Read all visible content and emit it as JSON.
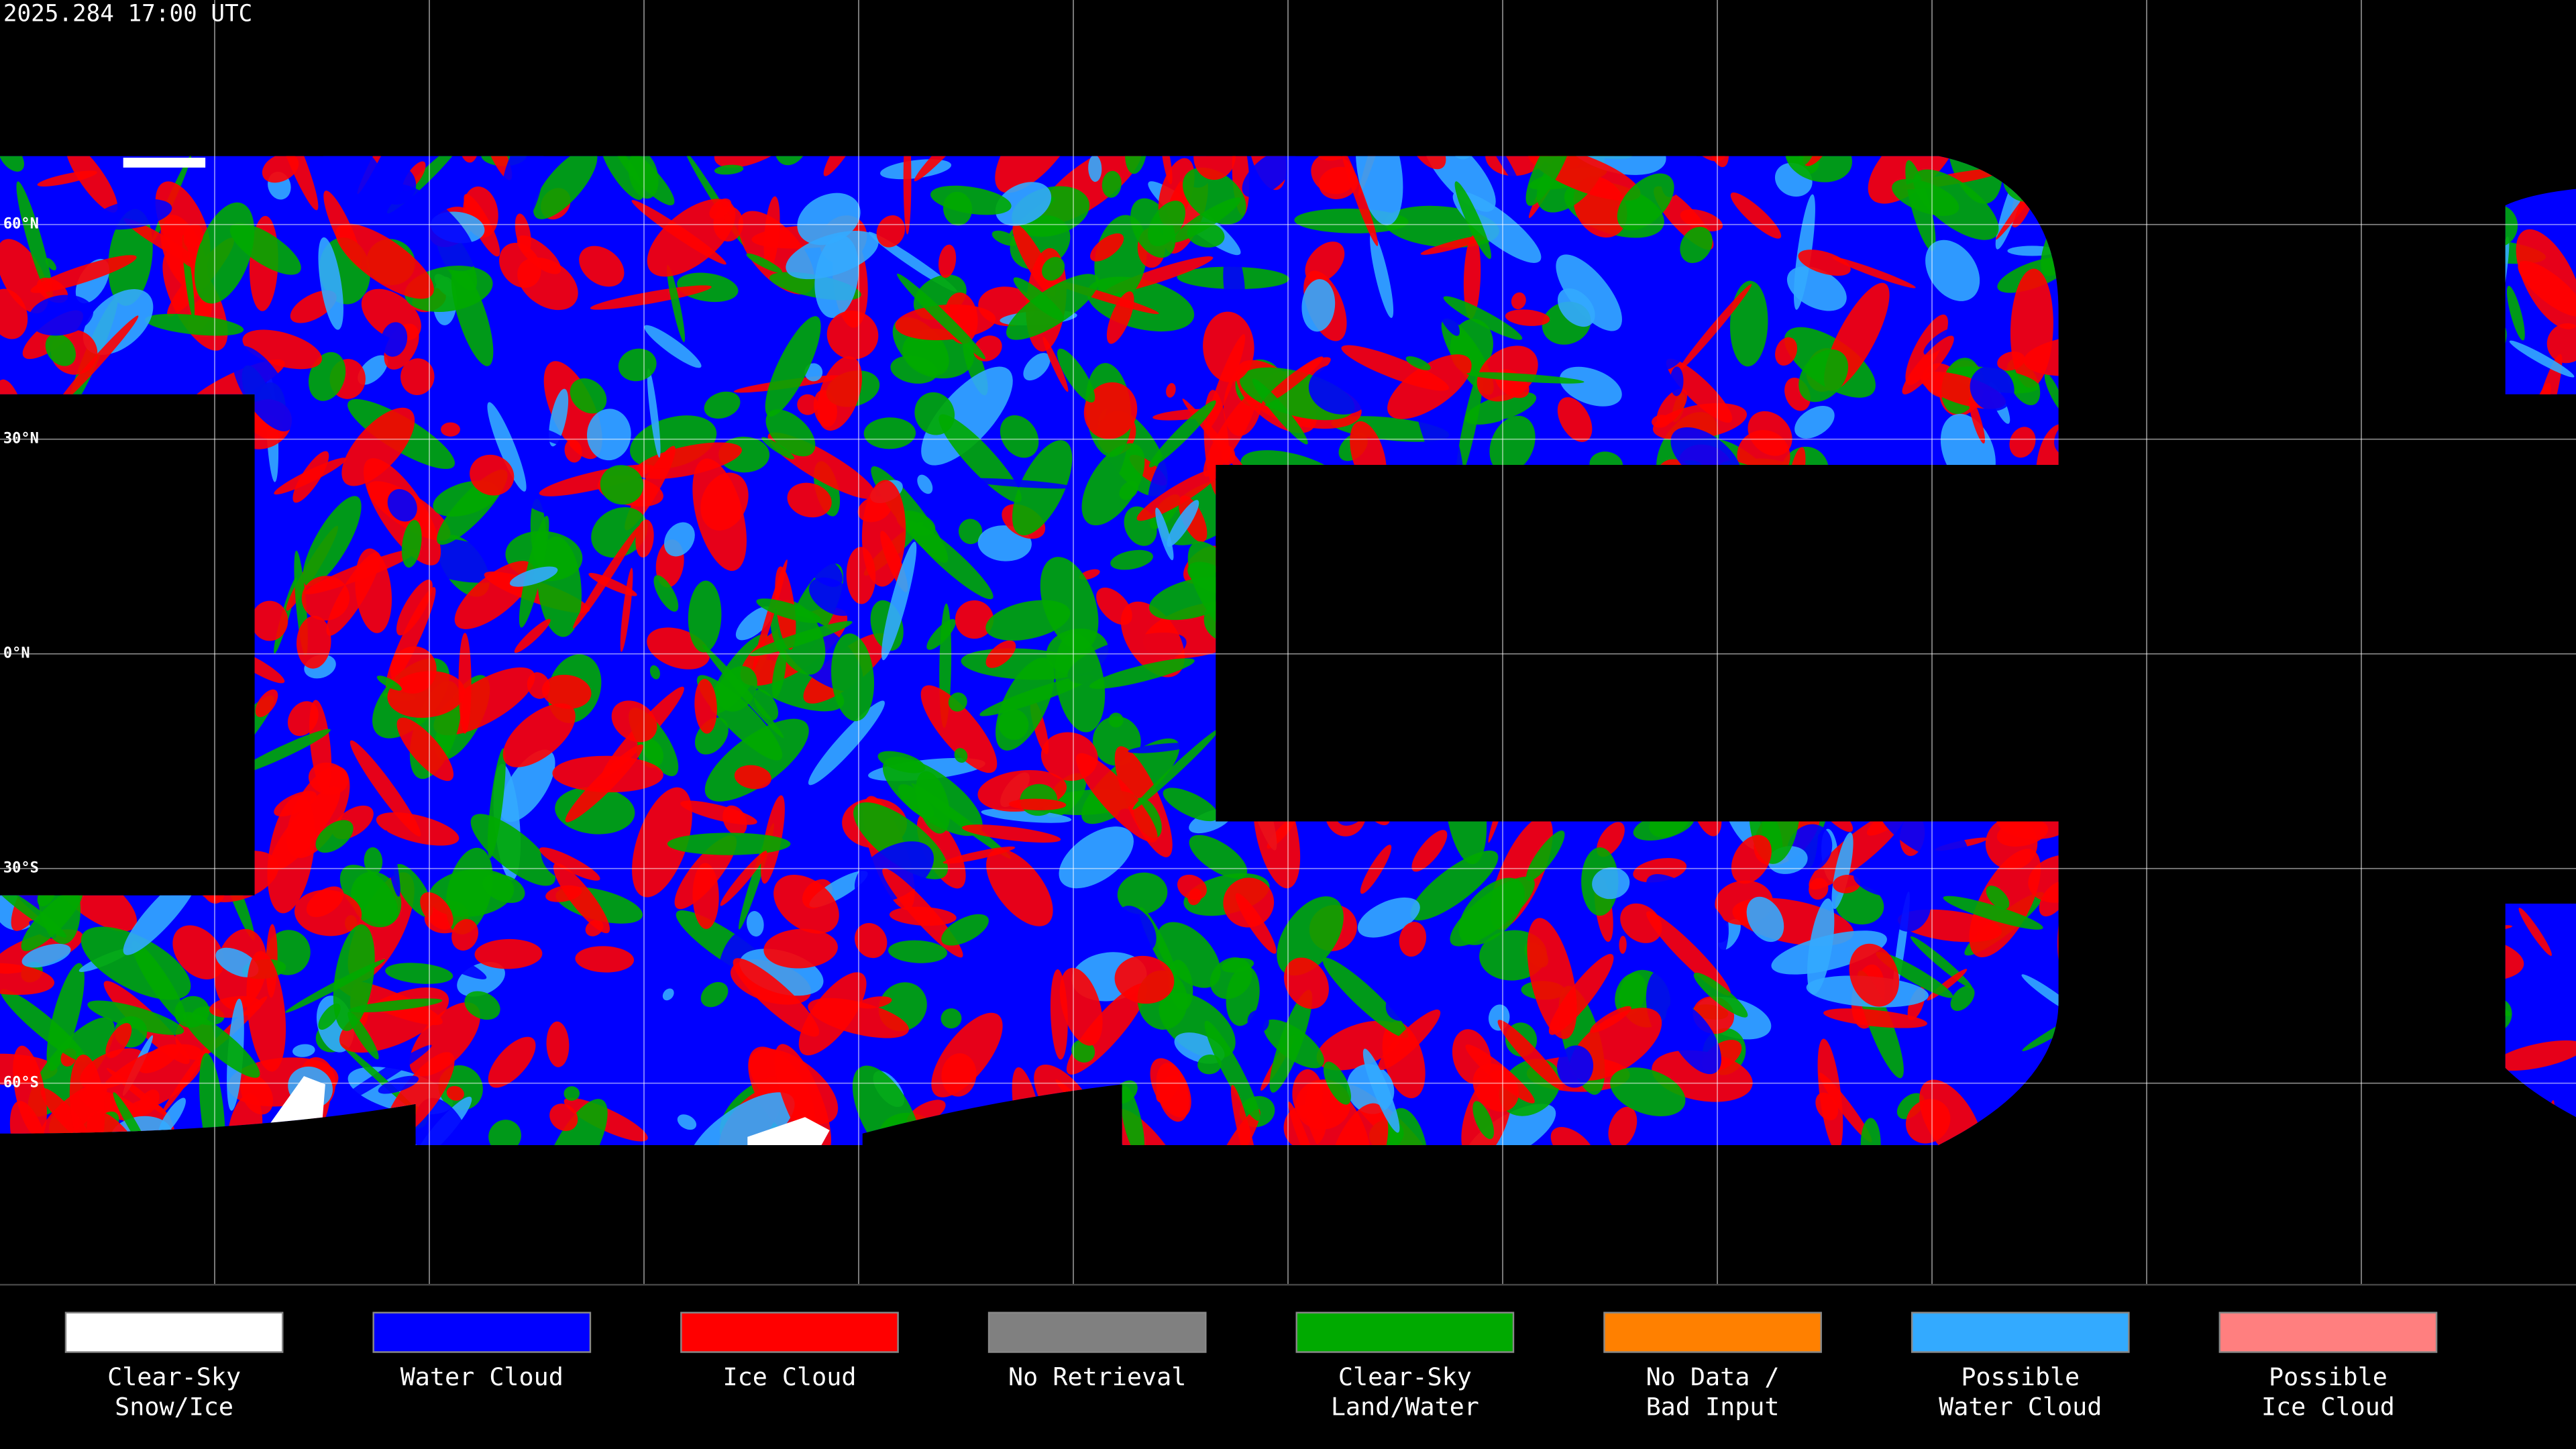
{
  "header": {
    "title": "2025.284 17:00 UTC"
  },
  "map": {
    "latitude_labels": [
      "60°N",
      "30°N",
      "0°N",
      "30°S",
      "60°S"
    ]
  },
  "legend": {
    "items": [
      {
        "label": [
          "Clear-Sky",
          "Snow/Ice"
        ],
        "color": "#ffffff"
      },
      {
        "label": [
          "Water Cloud"
        ],
        "color": "#0000ff"
      },
      {
        "label": [
          "Ice Cloud"
        ],
        "color": "#ff0000"
      },
      {
        "label": [
          "No Retrieval"
        ],
        "color": "#808080"
      },
      {
        "label": [
          "Clear-Sky",
          "Land/Water"
        ],
        "color": "#00aa00"
      },
      {
        "label": [
          "No Data /",
          "Bad Input"
        ],
        "color": "#ff8000"
      },
      {
        "label": [
          "Possible",
          "Water Cloud"
        ],
        "color": "#33aaff"
      },
      {
        "label": [
          "Possible",
          "Ice Cloud"
        ],
        "color": "#ff7f7f"
      }
    ]
  }
}
